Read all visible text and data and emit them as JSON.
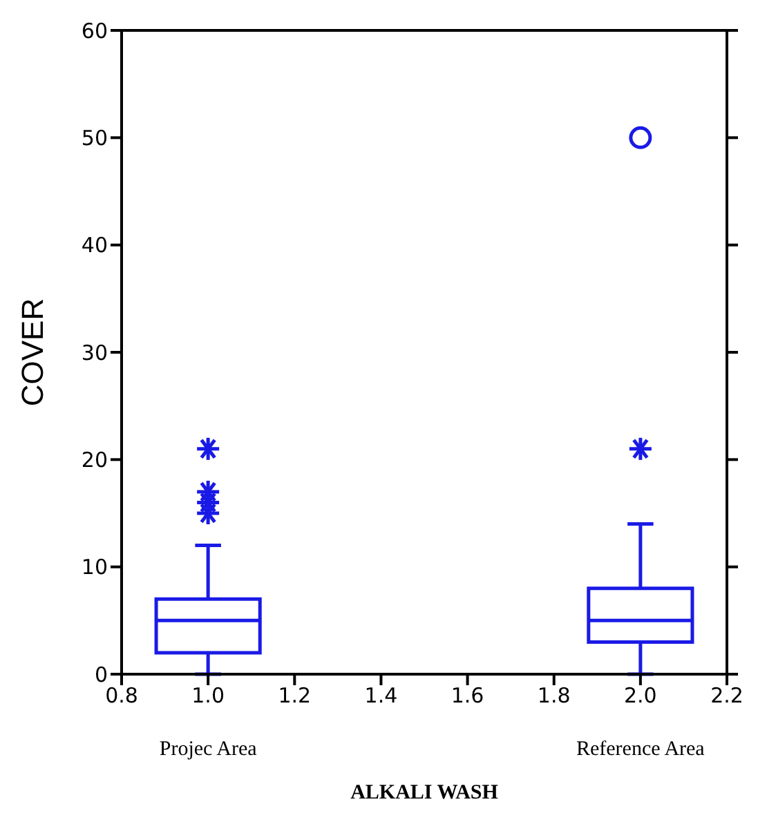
{
  "chart_data": {
    "type": "box",
    "xlabel": "ALKALI WASH",
    "ylabel": "COVER",
    "x": [
      1,
      2
    ],
    "xlim": [
      0.8,
      2.2
    ],
    "xticks": [
      {
        "value": 0.8,
        "label": "0.8"
      },
      {
        "value": 1,
        "label": "1.0"
      },
      {
        "value": 1.2,
        "label": "1.2"
      },
      {
        "value": 1.4,
        "label": "1.4"
      },
      {
        "value": 1.6,
        "label": "1.6"
      },
      {
        "value": 1.8,
        "label": "1.8"
      },
      {
        "value": 2,
        "label": "2.0"
      },
      {
        "value": 2.2,
        "label": "2.2"
      }
    ],
    "ylim": [
      0,
      60
    ],
    "yticks": [
      0,
      10,
      20,
      30,
      40,
      50,
      60
    ],
    "annotations": [
      "Projec Area",
      "Reference Area"
    ],
    "series": [
      {
        "color": "#1a1ae6",
        "marker": "star",
        "boxes": [
          {
            "low": 0,
            "q1": 2,
            "median": 5,
            "q3": 7,
            "high": 12,
            "outliers": [
              15,
              16,
              17,
              21
            ]
          },
          {
            "low": 0,
            "q1": 3,
            "median": 5,
            "q3": 8,
            "high": 14,
            "outliers": [
              21
            ]
          }
        ]
      },
      {
        "type": "scatter",
        "color": "#1a1ae6",
        "marker": "circle",
        "x": [
          2
        ],
        "values": [
          50
        ]
      }
    ]
  }
}
